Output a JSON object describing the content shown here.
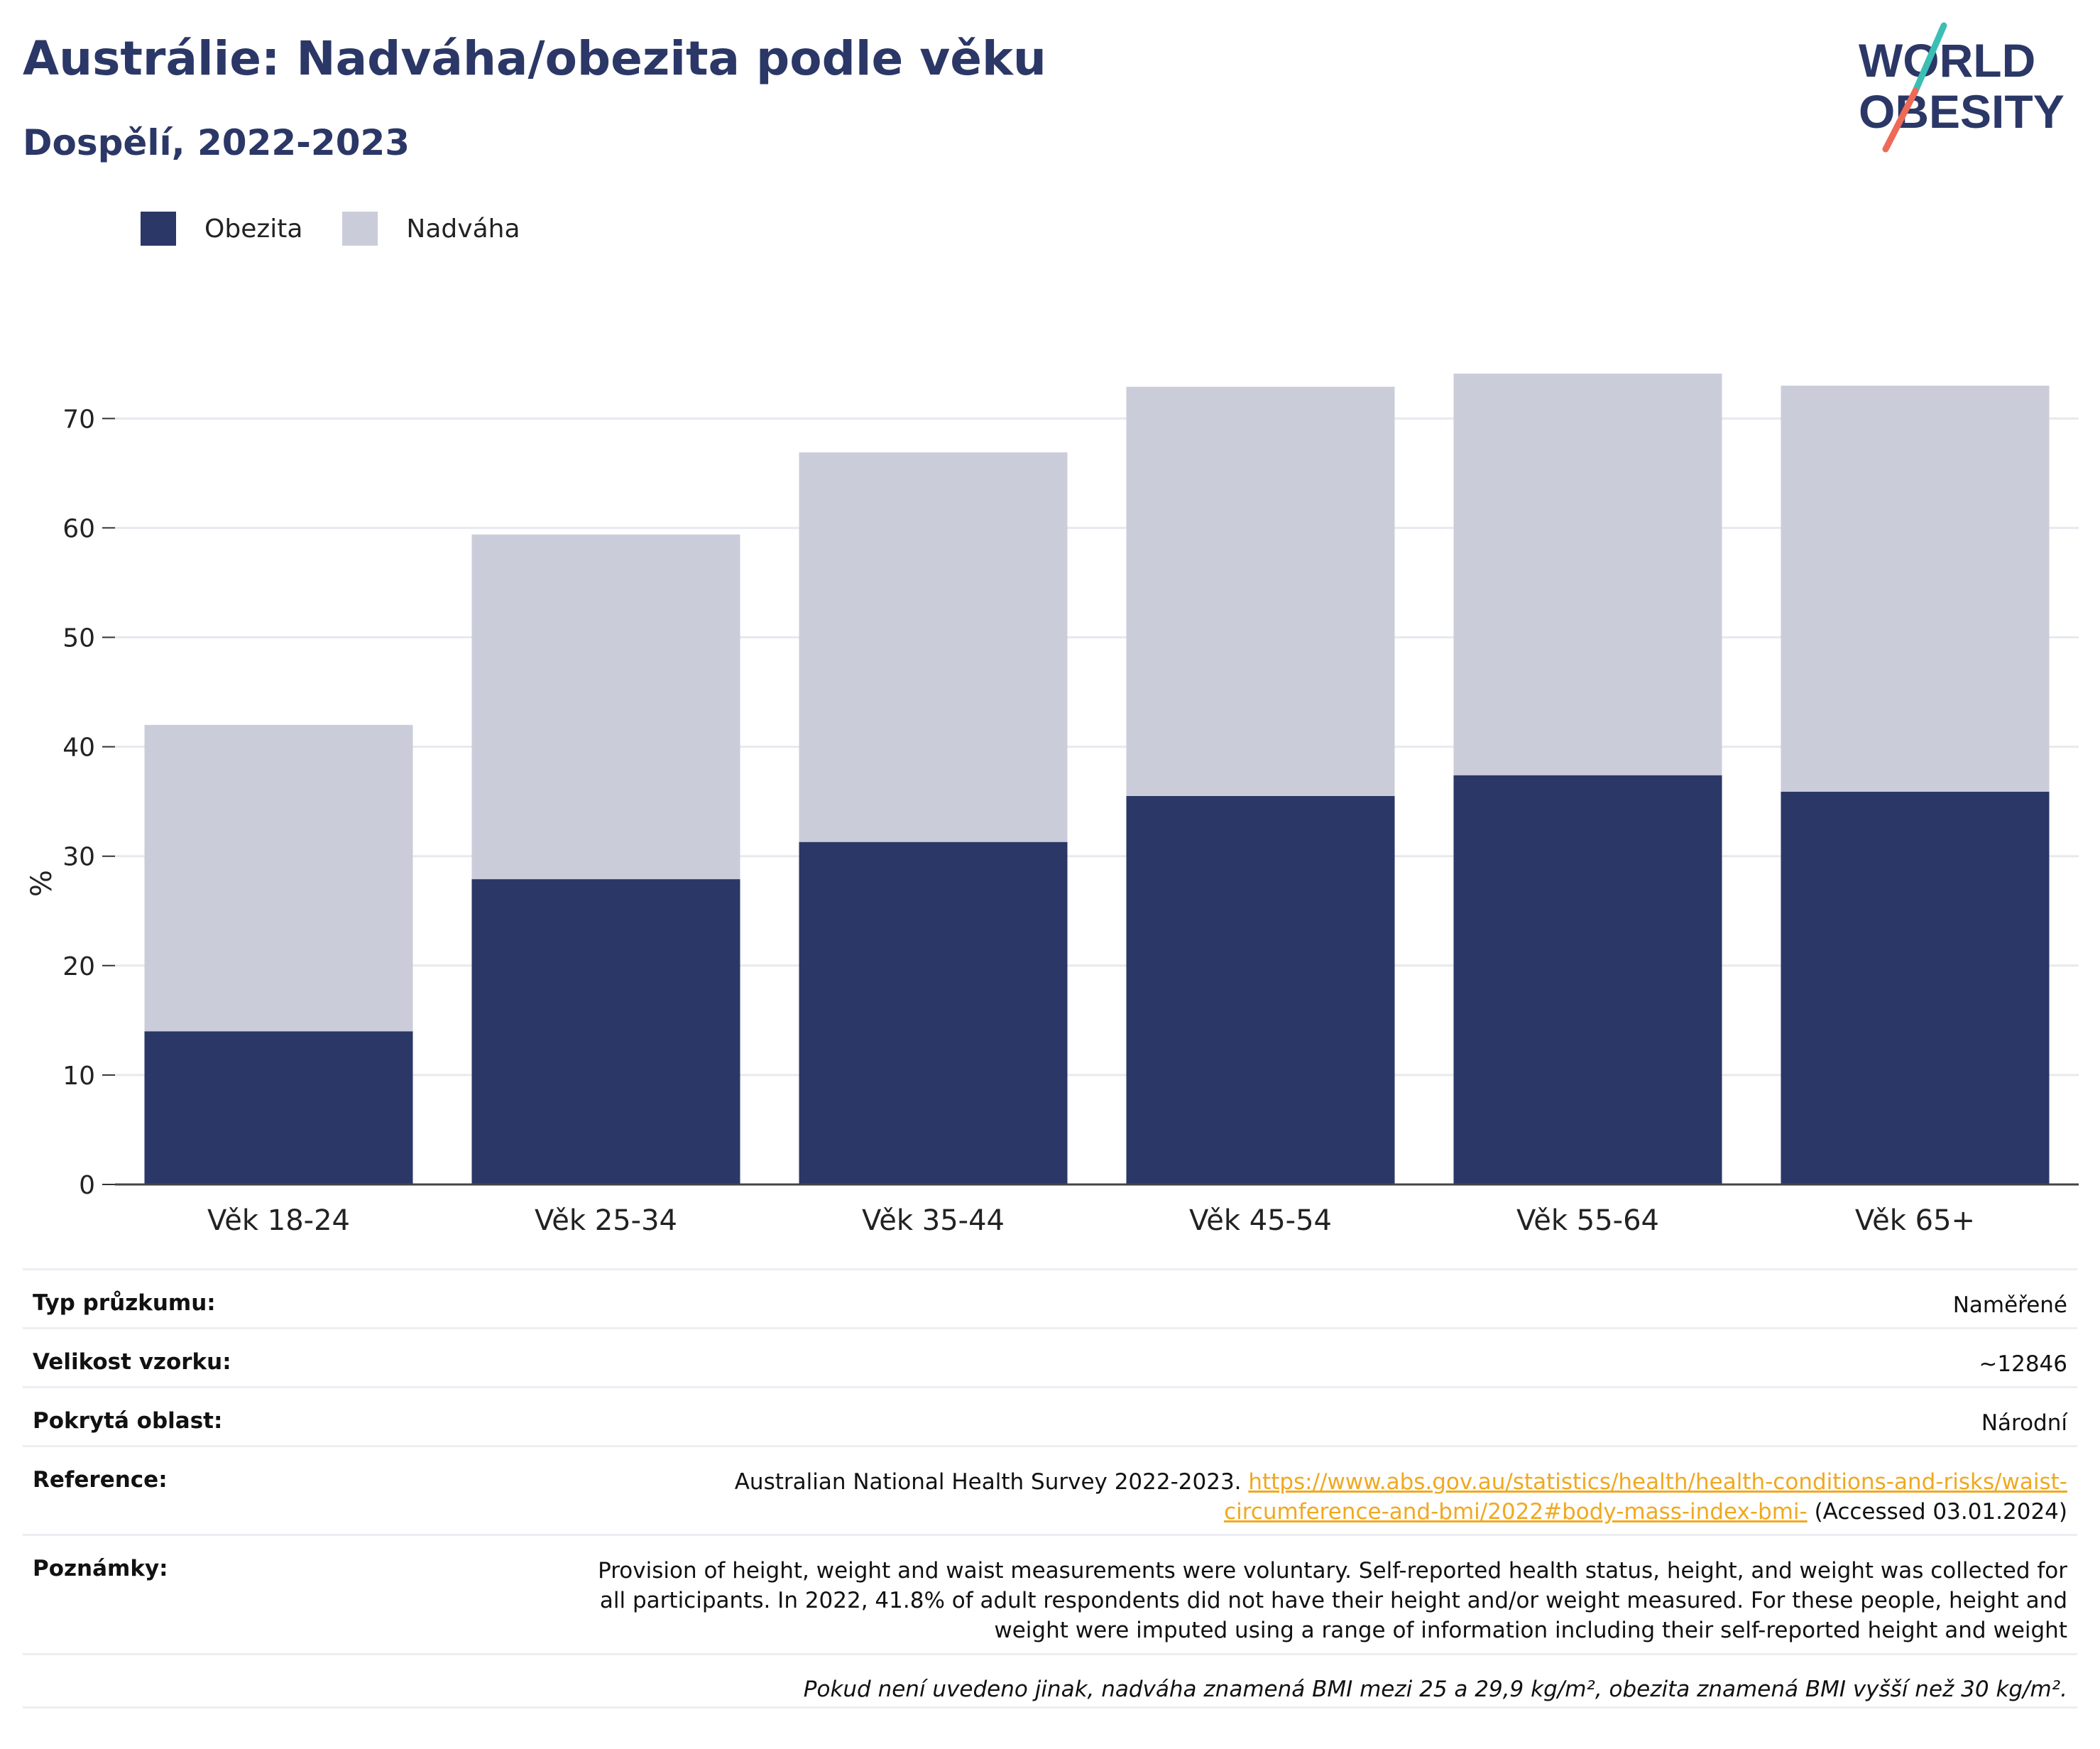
{
  "header": {
    "title": "Austrálie: Nadváha/obezita podle věku",
    "subtitle": "Dospělí, 2022-2023",
    "logo_line1": "WORLD",
    "logo_line2": "OBESITY"
  },
  "colors": {
    "obesity": "#2b3766",
    "overweight": "#cacdd9",
    "accent_teal": "#3bbfb4",
    "accent_coral": "#ee6a56",
    "link": "#f0a820"
  },
  "chart_data": {
    "type": "bar",
    "stacked": true,
    "categories": [
      "Věk 18-24",
      "Věk 25-34",
      "Věk 35-44",
      "Věk 45-54",
      "Věk 55-64",
      "Věk 65+"
    ],
    "series": [
      {
        "name": "Obezita",
        "values": [
          14.0,
          27.9,
          31.3,
          35.5,
          37.4,
          35.9
        ]
      },
      {
        "name": "Nadváha",
        "values": [
          28.0,
          31.5,
          35.6,
          37.4,
          36.7,
          37.1
        ]
      }
    ],
    "ylabel": "%",
    "xlabel": "",
    "ylim": [
      0,
      74.5
    ],
    "yticks": [
      0,
      10,
      20,
      30,
      40,
      50,
      60,
      70
    ],
    "grid": true,
    "legend": "top-left"
  },
  "info": {
    "survey_type": {
      "label": "Typ průzkumu:",
      "value": "Naměřené"
    },
    "sample_size": {
      "label": "Velikost vzorku:",
      "value": "~12846"
    },
    "coverage": {
      "label": "Pokrytá oblast:",
      "value": "Národní"
    },
    "reference": {
      "label": "Reference:",
      "text": "Australian National Health Survey 2022-2023. ",
      "link_line1": "https://www.abs.gov.au/statistics/health/health-conditions-and-risks/waist-",
      "link_line2": "circumference-and-bmi/2022#body-mass-index-bmi-",
      "accessed": " (Accessed 03.01.2024)"
    },
    "notes": {
      "label": "Poznámky:",
      "line1": "Provision of height, weight and waist measurements were voluntary. Self-reported health status, height, and weight was collected for",
      "line2": "all participants. In 2022, 41.8% of adult respondents did not have their height and/or weight measured. For these people, height and",
      "line3": "weight were imputed using a range of information including their self-reported height and weight"
    },
    "footnote": "Pokud není uvedeno jinak, nadváha znamená BMI mezi 25 a 29,9 kg/m², obezita znamená BMI vyšší než 30 kg/m²."
  }
}
